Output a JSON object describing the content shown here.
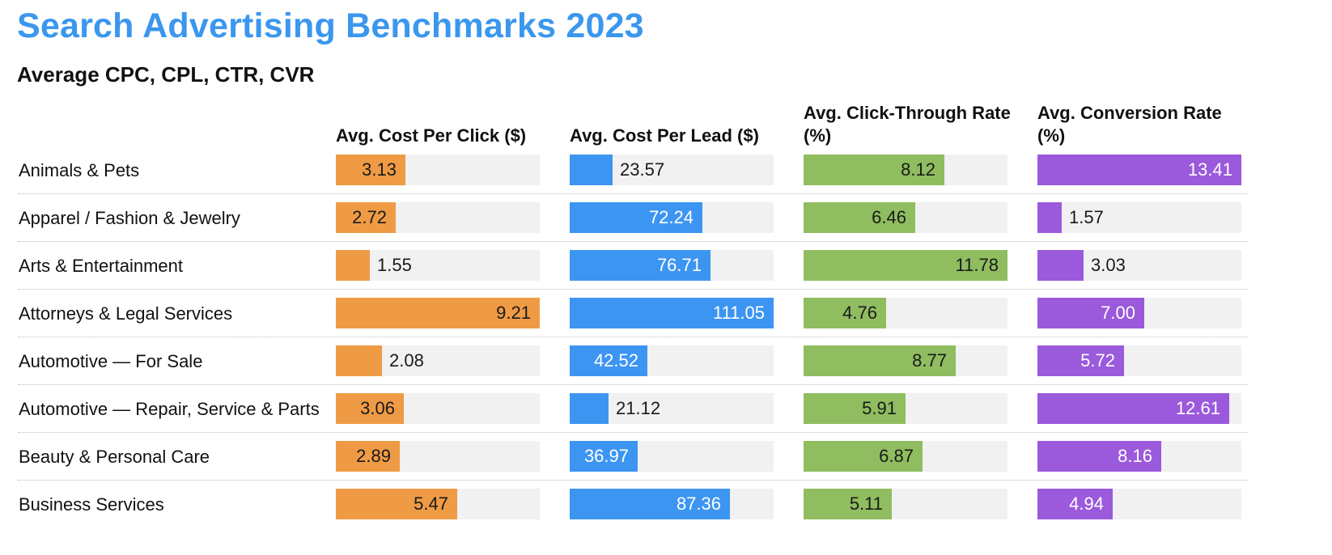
{
  "title": "Search Advertising Benchmarks 2023",
  "subtitle": "Average CPC, CPL, CTR, CVR",
  "chart_data": {
    "type": "bar",
    "title": "Search Advertising Benchmarks 2023",
    "subtitle": "Average CPC, CPL, CTR, CVR",
    "categories": [
      "Animals & Pets",
      "Apparel / Fashion & Jewelry",
      "Arts & Entertainment",
      "Attorneys & Legal Services",
      "Automotive — For Sale",
      "Automotive — Repair, Service & Parts",
      "Beauty & Personal Care",
      "Business Services"
    ],
    "series": [
      {
        "name": "Avg. Cost Per Click ($)",
        "color": "#ef9b45",
        "values": [
          3.13,
          2.72,
          1.55,
          9.21,
          2.08,
          3.06,
          2.89,
          5.47
        ],
        "labels": [
          "3.13",
          "2.72",
          "1.55",
          "9.21",
          "2.08",
          "3.06",
          "2.89",
          "5.47"
        ]
      },
      {
        "name": "Avg. Cost Per Lead ($)",
        "color": "#3d95f2",
        "values": [
          23.57,
          72.24,
          76.71,
          111.05,
          42.52,
          21.12,
          36.97,
          87.36
        ],
        "labels": [
          "23.57",
          "72.24",
          "76.71",
          "111.05",
          "42.52",
          "21.12",
          "36.97",
          "87.36"
        ]
      },
      {
        "name": "Avg. Click-Through Rate (%)",
        "color": "#8fbd5f",
        "values": [
          8.12,
          6.46,
          11.78,
          4.76,
          8.77,
          5.91,
          6.87,
          5.11
        ],
        "labels": [
          "8.12",
          "6.46",
          "11.78",
          "4.76",
          "8.77",
          "5.91",
          "6.87",
          "5.11"
        ]
      },
      {
        "name": "Avg. Conversion Rate (%)",
        "color": "#9b59dc",
        "values": [
          13.41,
          1.57,
          3.03,
          7.0,
          5.72,
          12.61,
          8.16,
          4.94
        ],
        "labels": [
          "13.41",
          "1.57",
          "3.03",
          "7.00",
          "5.72",
          "12.61",
          "8.16",
          "4.94"
        ]
      }
    ],
    "grid": false,
    "legend": "none"
  }
}
